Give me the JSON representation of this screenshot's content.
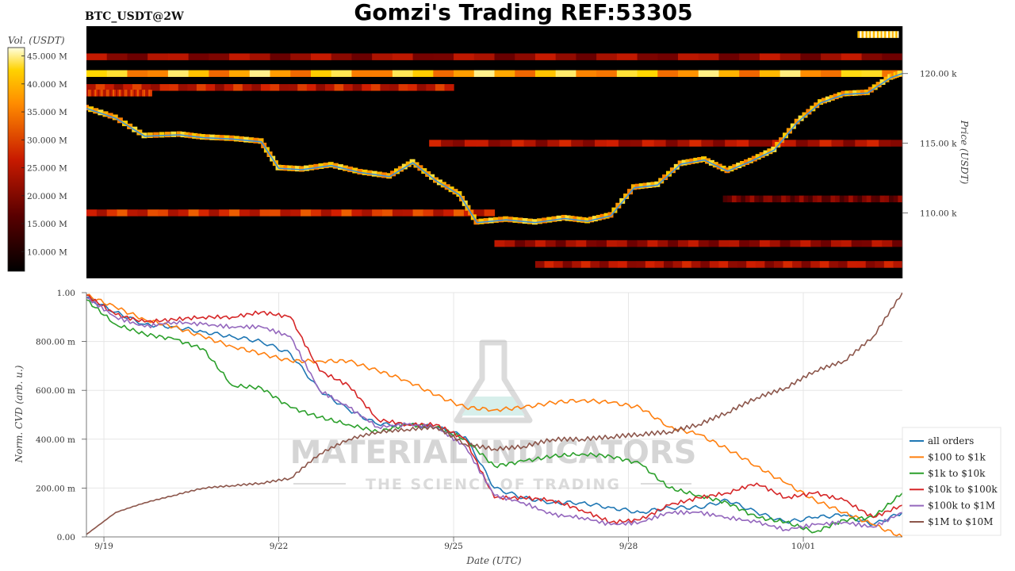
{
  "title": "Gomzi's Trading REF:53305",
  "symbol": "BTC_USDT@2W",
  "watermark": {
    "line1": "MATERIAL INDICATORS",
    "line2": "THE SCIENCE OF TRADING"
  },
  "colors": {
    "all_orders": "#1f77b4",
    "usd100_1k": "#ff7f0e",
    "usd1k_10k": "#2ca02c",
    "usd10k_100k": "#d62728",
    "usd100k_1m": "#9467bd",
    "usd1m_10m": "#8c564b",
    "price_line": "#3b8fd9"
  },
  "chart_data": [
    {
      "type": "heatmap",
      "description_label": "BTC_USDT@2W",
      "ylabel": "Price (USDT)",
      "y_ticks": [
        {
          "value": 110000,
          "label": "110.00 k"
        },
        {
          "value": 115000,
          "label": "115.00 k"
        },
        {
          "value": 120000,
          "label": "120.00 k"
        }
      ],
      "ylim": [
        105300,
        123400
      ],
      "colorbar": {
        "title": "Vol. (USDT)",
        "range": [
          6500000,
          46500000
        ],
        "ticks": [
          {
            "value": 10000000,
            "label": "10.000 M"
          },
          {
            "value": 15000000,
            "label": "15.000 M"
          },
          {
            "value": 20000000,
            "label": "20.000 M"
          },
          {
            "value": 25000000,
            "label": "25.000 M"
          },
          {
            "value": 30000000,
            "label": "30.000 M"
          },
          {
            "value": 35000000,
            "label": "35.000 M"
          },
          {
            "value": 40000000,
            "label": "40.000 M"
          },
          {
            "value": 45000000,
            "label": "45.000 M"
          }
        ]
      },
      "price_series": {
        "x_days": [
          0,
          0.5,
          1.0,
          1.6,
          2.0,
          2.5,
          3.0,
          3.3,
          3.7,
          4.2,
          4.7,
          5.2,
          5.6,
          6.0,
          6.4,
          6.7,
          7.2,
          7.7,
          8.2,
          8.6,
          9.0,
          9.4,
          9.8,
          10.2,
          10.6,
          11.0,
          11.4,
          11.8,
          12.2,
          12.6,
          13.0,
          13.4,
          13.8,
          14.0
        ],
        "y": [
          117500,
          116800,
          115500,
          115600,
          115400,
          115300,
          115100,
          113200,
          113100,
          113400,
          112900,
          112600,
          113600,
          112300,
          111300,
          109300,
          109500,
          109300,
          109600,
          109400,
          109800,
          111800,
          112000,
          113500,
          113800,
          113000,
          113700,
          114500,
          116500,
          117900,
          118500,
          118600,
          119700,
          120000
        ]
      },
      "bands": [
        {
          "price": 120000,
          "intensity": 0.85,
          "start": 0.0,
          "end": 1.0
        },
        {
          "price": 121200,
          "intensity": 0.45,
          "start": 0.0,
          "end": 1.0
        },
        {
          "price": 119000,
          "intensity": 0.55,
          "start": 0.0,
          "end": 0.45
        },
        {
          "price": 118600,
          "intensity": 0.6,
          "start": 0.0,
          "end": 0.08
        },
        {
          "price": 115000,
          "intensity": 0.5,
          "start": 0.42,
          "end": 1.0
        },
        {
          "price": 110000,
          "intensity": 0.6,
          "start": 0.0,
          "end": 0.5
        },
        {
          "price": 107800,
          "intensity": 0.45,
          "start": 0.5,
          "end": 1.0
        },
        {
          "price": 106300,
          "intensity": 0.5,
          "start": 0.55,
          "end": 1.0
        },
        {
          "price": 111000,
          "intensity": 0.35,
          "start": 0.78,
          "end": 1.0
        },
        {
          "price": 122800,
          "intensity": 0.95,
          "start": 0.945,
          "end": 0.995
        }
      ]
    },
    {
      "type": "line",
      "xlabel": "Date (UTC)",
      "ylabel": "Norm. CVD (arb. u.)",
      "x_ticks": [
        "9/19",
        "9/22",
        "9/25",
        "9/28",
        "10/01"
      ],
      "x_tick_days": [
        0.3,
        3.3,
        6.3,
        9.3,
        12.3
      ],
      "y_ticks": [
        {
          "value": 0.0,
          "label": "0.00"
        },
        {
          "value": 0.2,
          "label": "200.00 m"
        },
        {
          "value": 0.4,
          "label": "400.00 m"
        },
        {
          "value": 0.6,
          "label": "600.00 m"
        },
        {
          "value": 0.8,
          "label": "800.00 m"
        },
        {
          "value": 1.0,
          "label": "1.00"
        }
      ],
      "ylim": [
        0.0,
        1.0
      ],
      "x_days_range": [
        0,
        14
      ],
      "x_days": [
        0,
        0.5,
        1.0,
        1.5,
        2.0,
        2.5,
        3.0,
        3.5,
        4.0,
        4.5,
        5.0,
        5.5,
        6.0,
        6.5,
        7.0,
        7.5,
        8.0,
        8.5,
        9.0,
        9.5,
        10.0,
        10.5,
        11.0,
        11.5,
        12.0,
        12.5,
        13.0,
        13.5,
        14.0
      ],
      "legend_position": "bottom-right",
      "series": [
        {
          "name": "all orders",
          "color_key": "all_orders",
          "values": [
            0.98,
            0.92,
            0.87,
            0.86,
            0.84,
            0.82,
            0.8,
            0.75,
            0.6,
            0.52,
            0.46,
            0.46,
            0.45,
            0.41,
            0.2,
            0.16,
            0.14,
            0.14,
            0.12,
            0.1,
            0.12,
            0.12,
            0.15,
            0.1,
            0.06,
            0.08,
            0.09,
            0.05,
            0.1
          ]
        },
        {
          "name": "$100 to $1k",
          "color_key": "usd100_1k",
          "values": [
            0.99,
            0.94,
            0.89,
            0.86,
            0.82,
            0.78,
            0.75,
            0.72,
            0.72,
            0.72,
            0.68,
            0.64,
            0.58,
            0.53,
            0.52,
            0.53,
            0.55,
            0.56,
            0.55,
            0.53,
            0.45,
            0.42,
            0.36,
            0.29,
            0.22,
            0.15,
            0.1,
            0.05,
            0.0
          ]
        },
        {
          "name": "$1k to $10k",
          "color_key": "usd1k_10k",
          "values": [
            0.97,
            0.87,
            0.83,
            0.81,
            0.77,
            0.62,
            0.61,
            0.53,
            0.49,
            0.46,
            0.43,
            0.46,
            0.45,
            0.4,
            0.29,
            0.31,
            0.33,
            0.34,
            0.33,
            0.3,
            0.2,
            0.17,
            0.14,
            0.08,
            0.06,
            0.02,
            0.07,
            0.08,
            0.18
          ]
        },
        {
          "name": "$10k to $100k",
          "color_key": "usd10k_100k",
          "values": [
            0.99,
            0.91,
            0.88,
            0.89,
            0.9,
            0.9,
            0.92,
            0.9,
            0.68,
            0.62,
            0.48,
            0.46,
            0.46,
            0.4,
            0.16,
            0.16,
            0.15,
            0.11,
            0.06,
            0.07,
            0.13,
            0.16,
            0.18,
            0.22,
            0.16,
            0.18,
            0.15,
            0.08,
            0.13
          ]
        },
        {
          "name": "$100k to $1M",
          "color_key": "usd100k_1m",
          "values": [
            0.98,
            0.9,
            0.86,
            0.88,
            0.87,
            0.86,
            0.86,
            0.82,
            0.6,
            0.53,
            0.45,
            0.46,
            0.45,
            0.37,
            0.17,
            0.14,
            0.09,
            0.08,
            0.05,
            0.06,
            0.1,
            0.1,
            0.08,
            0.06,
            0.03,
            0.05,
            0.06,
            0.04,
            0.1
          ]
        },
        {
          "name": "$1M to $10M",
          "color_key": "usd1m_10m",
          "values": [
            0.01,
            0.1,
            0.14,
            0.17,
            0.2,
            0.21,
            0.22,
            0.24,
            0.34,
            0.4,
            0.43,
            0.44,
            0.45,
            0.38,
            0.36,
            0.37,
            0.4,
            0.4,
            0.41,
            0.42,
            0.43,
            0.46,
            0.51,
            0.57,
            0.61,
            0.68,
            0.72,
            0.82,
            1.0
          ]
        }
      ]
    }
  ]
}
